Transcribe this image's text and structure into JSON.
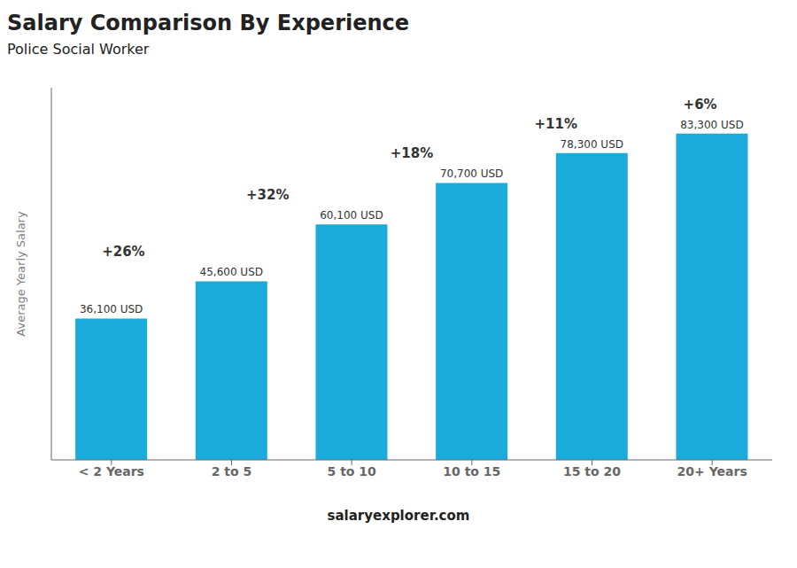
{
  "chart_data": {
    "type": "bar",
    "title": "Salary Comparison By Experience",
    "subtitle": "Police Social Worker",
    "ylabel": "Average Yearly Salary",
    "footer": "salaryexplorer.com",
    "categories": [
      "< 2 Years",
      "2 to 5",
      "5 to 10",
      "10 to 15",
      "15 to 20",
      "20+ Years"
    ],
    "values": [
      36100,
      45600,
      60100,
      70700,
      78300,
      83300
    ],
    "value_labels": [
      "36,100 USD",
      "45,600 USD",
      "60,100 USD",
      "70,700 USD",
      "78,300 USD",
      "83,300 USD"
    ],
    "data_labels": true,
    "annotations": [
      "+26%",
      "+32%",
      "+18%",
      "+11%",
      "+6%"
    ],
    "color": "#1AABDB",
    "ylim": [
      0,
      95000
    ],
    "tick_labels": "x",
    "grid": false
  }
}
